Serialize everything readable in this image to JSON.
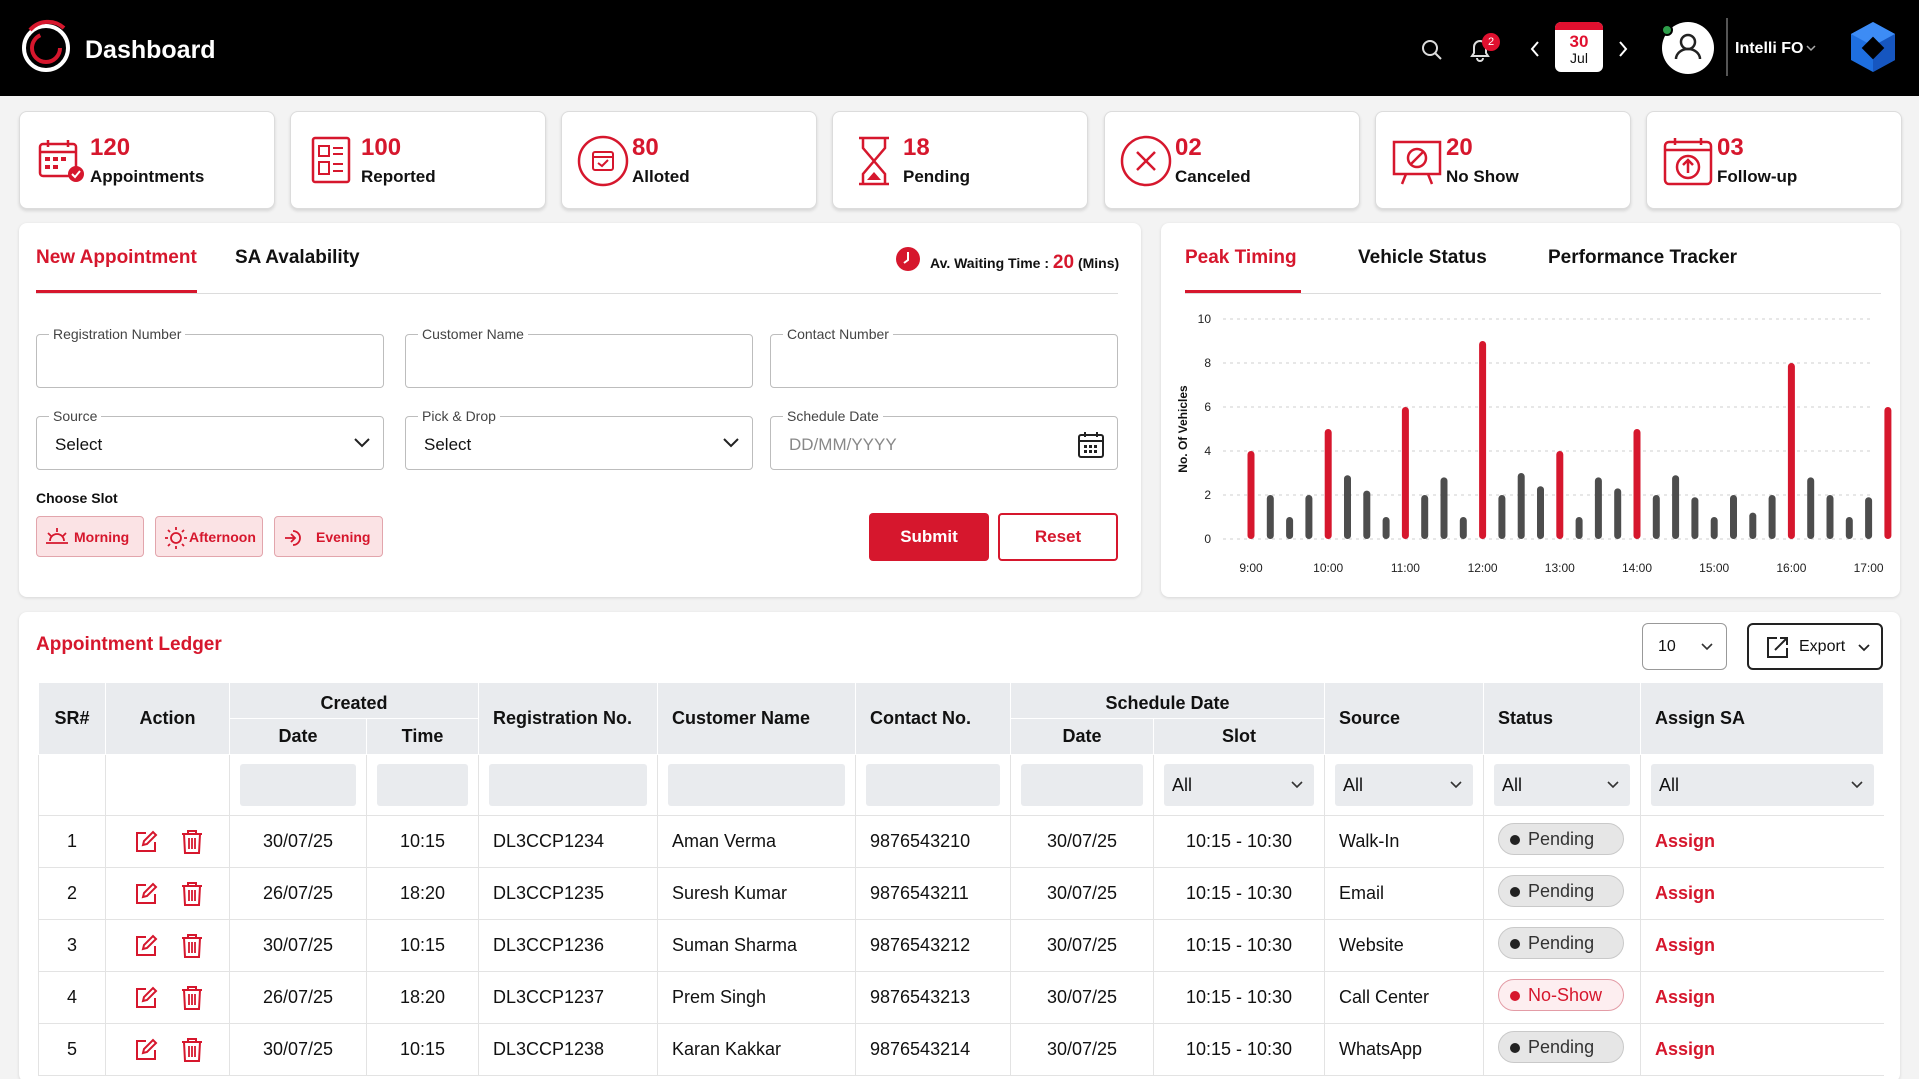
{
  "app": {
    "title": "Dashboard"
  },
  "header": {
    "notifications_count": "2",
    "date_day": "30",
    "date_month": "Jul",
    "user_name": "Intelli FO"
  },
  "stats": [
    {
      "value": "120",
      "label": "Appointments",
      "icon": "calendar-check-icon"
    },
    {
      "value": "100",
      "label": "Reported",
      "icon": "report-icon"
    },
    {
      "value": "80",
      "label": "Alloted",
      "icon": "calendar-circle-icon"
    },
    {
      "value": "18",
      "label": "Pending",
      "icon": "hourglass-icon"
    },
    {
      "value": "02",
      "label": "Canceled",
      "icon": "cancel-circle-icon"
    },
    {
      "value": "20",
      "label": "No Show",
      "icon": "no-show-board-icon"
    },
    {
      "value": "03",
      "label": "Follow-up",
      "icon": "follow-up-calendar-icon"
    }
  ],
  "appointment_panel": {
    "tabs": [
      "New Appointment",
      "SA Avalability"
    ],
    "wait_label": "Av. Waiting Time :",
    "wait_value": "20",
    "wait_unit": "(Mins)",
    "fields": {
      "registration": {
        "label": "Registration Number",
        "value": ""
      },
      "customer": {
        "label": "Customer Name",
        "value": ""
      },
      "contact": {
        "label": "Contact Number",
        "value": ""
      },
      "source": {
        "label": "Source",
        "value": "Select"
      },
      "pickdrop": {
        "label": "Pick & Drop",
        "value": "Select"
      },
      "schedule": {
        "label": "Schedule Date",
        "placeholder": "DD/MM/YYYY"
      }
    },
    "slot_label": "Choose Slot",
    "slots": [
      "Morning",
      "Afternoon",
      "Evening"
    ],
    "submit_label": "Submit",
    "reset_label": "Reset"
  },
  "chart_panel": {
    "tabs": [
      "Peak Timing",
      "Vehicle Status",
      "Performance Tracker"
    ]
  },
  "chart_data": {
    "type": "bar",
    "ylabel": "No. Of Vehicles",
    "ylim": [
      0,
      10
    ],
    "yticks": [
      0,
      2,
      4,
      6,
      8,
      10
    ],
    "xtick_labels": [
      "9:00",
      "10:00",
      "11:00",
      "12:00",
      "13:00",
      "14:00",
      "15:00",
      "16:00",
      "17:00"
    ],
    "grid": "horizontal-dashed",
    "colors": {
      "hour": "#d6172d",
      "interval": "#4d4d4d"
    },
    "bars": [
      {
        "time": "9:00",
        "value": 4,
        "hour": true
      },
      {
        "time": "9:15",
        "value": 2,
        "hour": false
      },
      {
        "time": "9:30",
        "value": 1,
        "hour": false
      },
      {
        "time": "9:45",
        "value": 2,
        "hour": false
      },
      {
        "time": "10:00",
        "value": 5,
        "hour": true
      },
      {
        "time": "10:15",
        "value": 2.9,
        "hour": false
      },
      {
        "time": "10:30",
        "value": 2.2,
        "hour": false
      },
      {
        "time": "10:45",
        "value": 1,
        "hour": false
      },
      {
        "time": "11:00",
        "value": 6,
        "hour": true
      },
      {
        "time": "11:15",
        "value": 2,
        "hour": false
      },
      {
        "time": "11:30",
        "value": 2.8,
        "hour": false
      },
      {
        "time": "11:45",
        "value": 1,
        "hour": false
      },
      {
        "time": "12:00",
        "value": 9,
        "hour": true
      },
      {
        "time": "12:15",
        "value": 2,
        "hour": false
      },
      {
        "time": "12:30",
        "value": 3,
        "hour": false
      },
      {
        "time": "12:45",
        "value": 2.4,
        "hour": false
      },
      {
        "time": "13:00",
        "value": 4,
        "hour": true
      },
      {
        "time": "13:15",
        "value": 1,
        "hour": false
      },
      {
        "time": "13:30",
        "value": 2.8,
        "hour": false
      },
      {
        "time": "13:45",
        "value": 2.3,
        "hour": false
      },
      {
        "time": "14:00",
        "value": 5,
        "hour": true
      },
      {
        "time": "14:15",
        "value": 2,
        "hour": false
      },
      {
        "time": "14:30",
        "value": 2.9,
        "hour": false
      },
      {
        "time": "14:45",
        "value": 1.9,
        "hour": false
      },
      {
        "time": "15:00",
        "value": 1,
        "hour": false
      },
      {
        "time": "15:15",
        "value": 2,
        "hour": false
      },
      {
        "time": "15:30",
        "value": 1.2,
        "hour": false
      },
      {
        "time": "15:45",
        "value": 2,
        "hour": false
      },
      {
        "time": "16:00",
        "value": 8,
        "hour": true
      },
      {
        "time": "16:15",
        "value": 2.8,
        "hour": false
      },
      {
        "time": "16:30",
        "value": 2,
        "hour": false
      },
      {
        "time": "16:45",
        "value": 1,
        "hour": false
      },
      {
        "time": "17:00",
        "value": 1.9,
        "hour": false
      },
      {
        "time": "17:15",
        "value": 6,
        "hour": true
      }
    ]
  },
  "ledger": {
    "title": "Appointment Ledger",
    "page_size": "10",
    "export_label": "Export",
    "headers": {
      "sr": "SR#",
      "action": "Action",
      "created": "Created",
      "created_date": "Date",
      "created_time": "Time",
      "reg": "Registration No.",
      "customer": "Customer Name",
      "contact": "Contact No.",
      "schedule": "Schedule Date",
      "sched_date": "Date",
      "sched_slot": "Slot",
      "source": "Source",
      "status": "Status",
      "assign": "Assign SA"
    },
    "filters": {
      "slot": "All",
      "source": "All",
      "status": "All",
      "assign": "All"
    },
    "assign_label": "Assign",
    "rows": [
      {
        "sr": "1",
        "date": "30/07/25",
        "time": "10:15",
        "reg": "DL3CCP1234",
        "customer": "Aman Verma",
        "contact": "9876543210",
        "sdate": "30/07/25",
        "slot": "10:15 - 10:30",
        "source": "Walk-In",
        "status": "Pending"
      },
      {
        "sr": "2",
        "date": "26/07/25",
        "time": "18:20",
        "reg": "DL3CCP1235",
        "customer": "Suresh Kumar",
        "contact": "9876543211",
        "sdate": "30/07/25",
        "slot": "10:15 - 10:30",
        "source": "Email",
        "status": "Pending"
      },
      {
        "sr": "3",
        "date": "30/07/25",
        "time": "10:15",
        "reg": "DL3CCP1236",
        "customer": "Suman Sharma",
        "contact": "9876543212",
        "sdate": "30/07/25",
        "slot": "10:15 - 10:30",
        "source": "Website",
        "status": "Pending"
      },
      {
        "sr": "4",
        "date": "26/07/25",
        "time": "18:20",
        "reg": "DL3CCP1237",
        "customer": "Prem Singh",
        "contact": "9876543213",
        "sdate": "30/07/25",
        "slot": "10:15 - 10:30",
        "source": "Call Center",
        "status": "No-Show"
      },
      {
        "sr": "5",
        "date": "30/07/25",
        "time": "10:15",
        "reg": "DL3CCP1238",
        "customer": "Karan Kakkar",
        "contact": "9876543214",
        "sdate": "30/07/25",
        "slot": "10:15 - 10:30",
        "source": "WhatsApp",
        "status": "Pending"
      }
    ]
  }
}
